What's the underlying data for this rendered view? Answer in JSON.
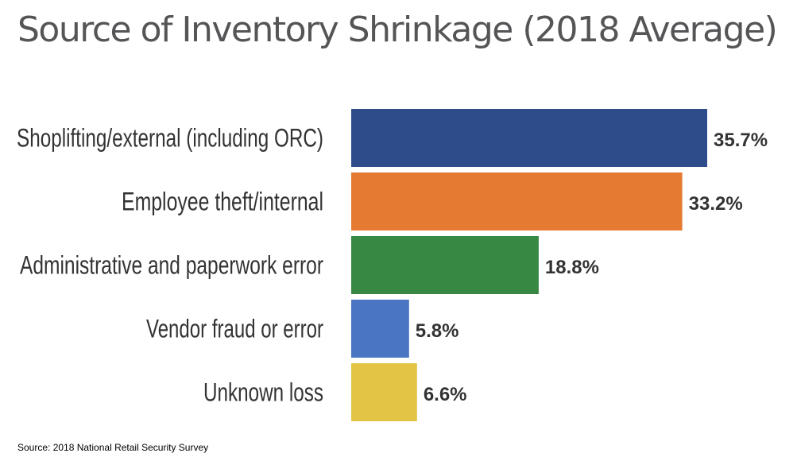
{
  "chart_data": {
    "type": "bar",
    "orientation": "horizontal",
    "title": "Source of Inventory Shrinkage (2018 Average)",
    "source": "Source: 2018 National Retail Security Survey",
    "categories": [
      "Shoplifting/external (including ORC)",
      "Employee theft/internal",
      "Administrative and paperwork error",
      "Vendor fraud or error",
      "Unknown loss"
    ],
    "values": [
      35.7,
      33.2,
      18.8,
      5.8,
      6.6
    ],
    "value_labels": [
      "35.7%",
      "33.2%",
      "18.8%",
      "5.8%",
      "6.6%"
    ],
    "colors": [
      "#2e4b8a",
      "#e57a33",
      "#368842",
      "#4a75c2",
      "#e4c445"
    ],
    "xlim": [
      0,
      35.7
    ],
    "grid": false,
    "legend": "none"
  }
}
